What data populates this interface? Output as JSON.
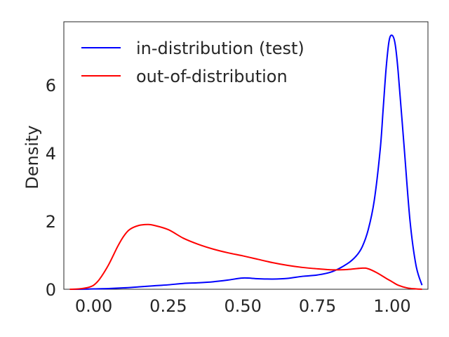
{
  "chart_data": {
    "type": "line",
    "title": "",
    "xlabel": "",
    "ylabel": "Density",
    "xlim": [
      -0.1,
      1.12
    ],
    "ylim": [
      0,
      7.85
    ],
    "xticks": [
      0.0,
      0.25,
      0.5,
      0.75,
      1.0
    ],
    "xtick_labels": [
      "0.00",
      "0.25",
      "0.50",
      "0.75",
      "1.00"
    ],
    "yticks": [
      0,
      2,
      4,
      6
    ],
    "ytick_labels": [
      "0",
      "2",
      "4",
      "6"
    ],
    "grid": false,
    "legend_position": "upper-left",
    "series": [
      {
        "name": "in-distribution (test)",
        "color": "#0000ff",
        "x": [
          -0.08,
          -0.05,
          0.0,
          0.05,
          0.1,
          0.15,
          0.2,
          0.25,
          0.3,
          0.35,
          0.4,
          0.45,
          0.5,
          0.55,
          0.6,
          0.65,
          0.7,
          0.75,
          0.8,
          0.85,
          0.88,
          0.9,
          0.92,
          0.94,
          0.96,
          0.97,
          0.98,
          0.99,
          1.0,
          1.01,
          1.02,
          1.04,
          1.06,
          1.08,
          1.1
        ],
        "y": [
          0.0,
          0.0,
          0.01,
          0.02,
          0.04,
          0.07,
          0.1,
          0.13,
          0.17,
          0.19,
          0.22,
          0.27,
          0.33,
          0.31,
          0.3,
          0.32,
          0.38,
          0.42,
          0.52,
          0.75,
          0.98,
          1.25,
          1.75,
          2.6,
          4.1,
          5.3,
          6.5,
          7.3,
          7.45,
          7.2,
          6.4,
          4.2,
          2.0,
          0.7,
          0.12
        ]
      },
      {
        "name": "out-of-distribution",
        "color": "#ff0000",
        "x": [
          -0.08,
          -0.05,
          -0.02,
          0.0,
          0.02,
          0.05,
          0.08,
          0.1,
          0.12,
          0.15,
          0.18,
          0.2,
          0.25,
          0.3,
          0.35,
          0.4,
          0.45,
          0.5,
          0.55,
          0.6,
          0.65,
          0.7,
          0.75,
          0.8,
          0.85,
          0.9,
          0.92,
          0.95,
          0.98,
          1.0,
          1.02,
          1.05,
          1.08,
          1.1
        ],
        "y": [
          0.0,
          0.01,
          0.05,
          0.12,
          0.3,
          0.72,
          1.25,
          1.55,
          1.75,
          1.87,
          1.9,
          1.88,
          1.75,
          1.5,
          1.32,
          1.18,
          1.07,
          0.98,
          0.88,
          0.78,
          0.7,
          0.64,
          0.6,
          0.57,
          0.58,
          0.62,
          0.6,
          0.48,
          0.32,
          0.22,
          0.12,
          0.04,
          0.01,
          0.0
        ]
      }
    ]
  }
}
